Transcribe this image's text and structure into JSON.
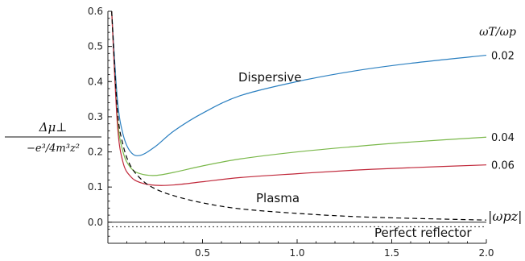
{
  "chart_data": {
    "type": "line",
    "xlim": [
      0,
      2.0
    ],
    "ylim": [
      -0.06,
      0.6
    ],
    "x_ticks": [
      "0.5",
      "1.0",
      "1.5",
      "2.0"
    ],
    "y_ticks": [
      "0.0",
      "0.1",
      "0.2",
      "0.3",
      "0.4",
      "0.5",
      "0.6"
    ],
    "ylabel_numerator": "Δμ⊥",
    "ylabel_denominator": "−e³/4m³z²",
    "xlabel": "|ωpz|",
    "legend_title": "ωT/ωp",
    "annotations": [
      "Dispersive",
      "Plasma",
      "Perfect reflector"
    ],
    "grid": false,
    "series": [
      {
        "name": "0.02",
        "color": "#2a7fc0",
        "x": [
          0.02,
          0.05,
          0.08,
          0.12,
          0.17,
          0.25,
          0.35,
          0.5,
          0.7,
          1.0,
          1.3,
          1.6,
          2.0
        ],
        "y": [
          0.6,
          0.35,
          0.25,
          0.2,
          0.19,
          0.215,
          0.26,
          0.31,
          0.36,
          0.4,
          0.43,
          0.452,
          0.475
        ]
      },
      {
        "name": "0.04",
        "color": "#7ab84a",
        "x": [
          0.02,
          0.05,
          0.08,
          0.12,
          0.17,
          0.25,
          0.35,
          0.5,
          0.7,
          1.0,
          1.3,
          1.6,
          2.0
        ],
        "y": [
          0.6,
          0.3,
          0.2,
          0.155,
          0.138,
          0.133,
          0.142,
          0.16,
          0.18,
          0.2,
          0.215,
          0.228,
          0.242
        ]
      },
      {
        "name": "0.06",
        "color": "#c0283a",
        "x": [
          0.02,
          0.05,
          0.08,
          0.12,
          0.17,
          0.25,
          0.35,
          0.5,
          0.7,
          1.0,
          1.3,
          1.6,
          2.0
        ],
        "y": [
          0.6,
          0.28,
          0.17,
          0.13,
          0.113,
          0.105,
          0.106,
          0.115,
          0.127,
          0.138,
          0.148,
          0.155,
          0.163
        ]
      },
      {
        "name": "Plasma",
        "color": "#000000",
        "dash": "6,4",
        "x": [
          0.02,
          0.05,
          0.08,
          0.12,
          0.18,
          0.25,
          0.35,
          0.5,
          0.7,
          1.0,
          1.3,
          1.6,
          2.0
        ],
        "y": [
          0.6,
          0.32,
          0.22,
          0.16,
          0.12,
          0.095,
          0.075,
          0.055,
          0.038,
          0.025,
          0.016,
          0.011,
          0.006
        ]
      },
      {
        "name": "Perfect reflector",
        "color": "#555555",
        "dash": "2,3",
        "x": [
          0,
          2.0
        ],
        "y": [
          -0.013,
          -0.013
        ]
      }
    ]
  }
}
